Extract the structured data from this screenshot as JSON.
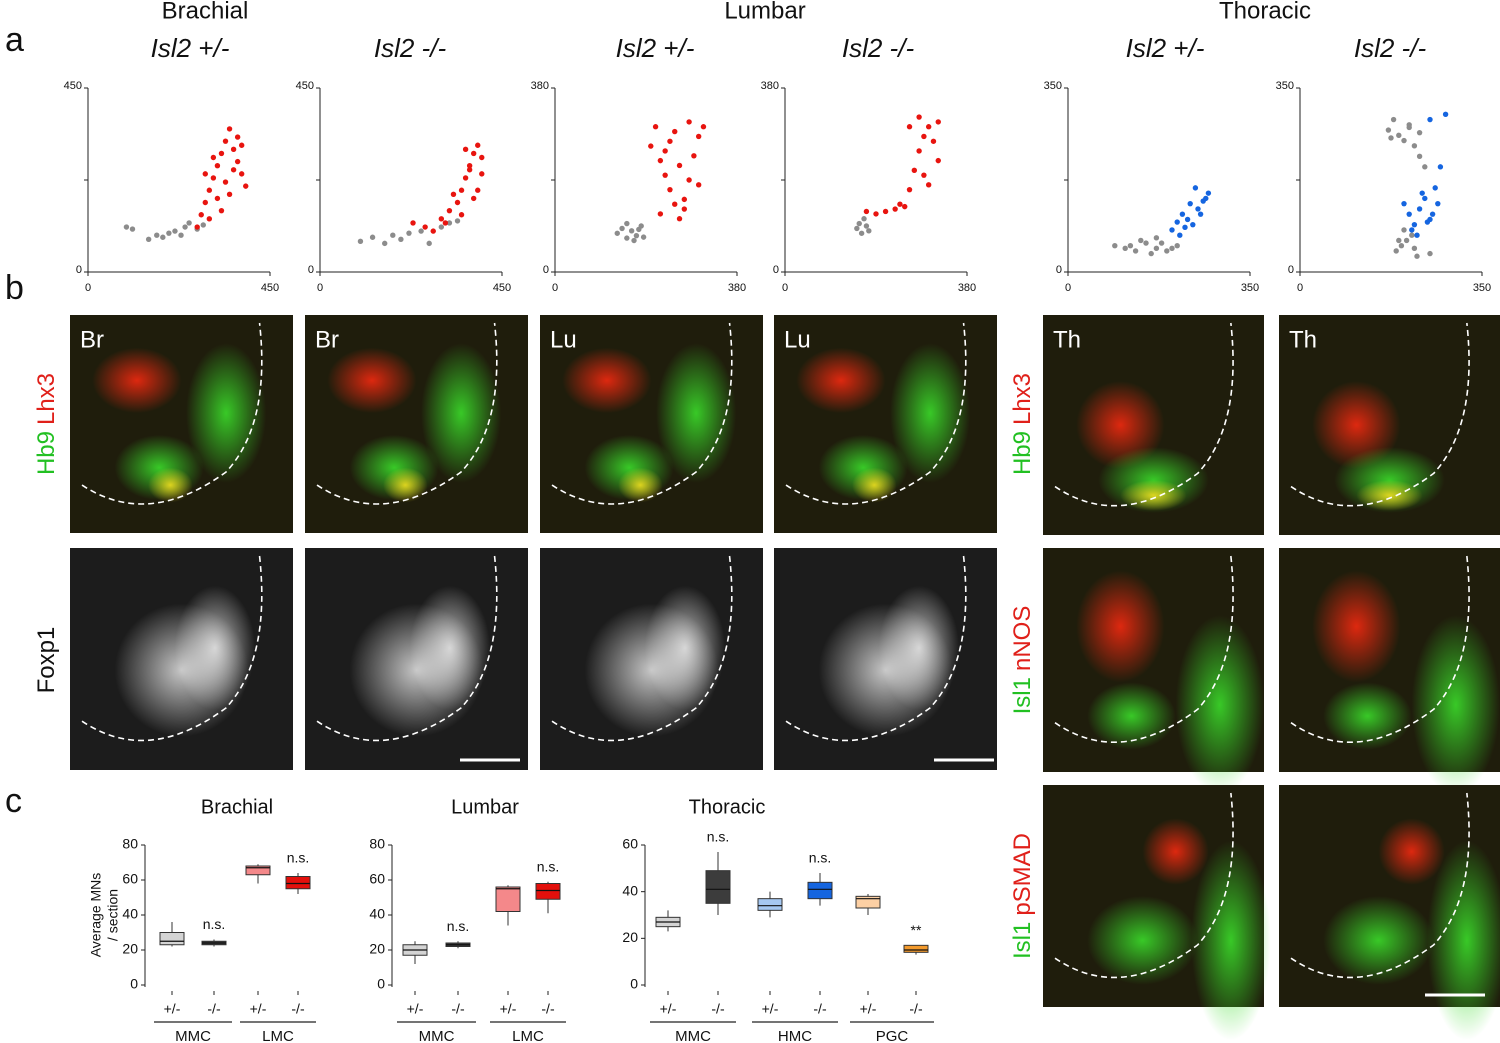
{
  "labels": {
    "panels": [
      "a",
      "b",
      "c"
    ],
    "regions": [
      "Brachial",
      "Lumbar",
      "Thoracic"
    ],
    "genotypes": [
      "Isl2 +/-",
      "Isl2 -/-",
      "Isl2 +/-",
      "Isl2 -/-",
      "Isl2 +/-",
      "Isl2 -/-"
    ],
    "image_tags": [
      "Br",
      "Br",
      "Lu",
      "Lu"
    ],
    "thoracic_tags": [
      "Th",
      "Th"
    ],
    "row_labels": [
      [
        {
          "text": "Hb9",
          "color": "#22c022"
        },
        {
          "text": "Lhx3",
          "color": "#e0201a"
        }
      ],
      [
        {
          "text": "Foxp1",
          "color": "#111111"
        }
      ]
    ],
    "thoracic_row_labels": [
      [
        {
          "text": "Hb9",
          "color": "#22c022"
        },
        {
          "text": "Lhx3",
          "color": "#e0201a"
        }
      ],
      [
        {
          "text": "Isl1",
          "color": "#22c022"
        },
        {
          "text": "nNOS",
          "color": "#e0201a"
        }
      ],
      [
        {
          "text": "Isl1",
          "color": "#22c022"
        },
        {
          "text": "pSMAD",
          "color": "#e0201a"
        }
      ]
    ]
  },
  "chart_data": [
    {
      "type": "scatter",
      "xlim": [
        0,
        450
      ],
      "ylim": [
        0,
        450
      ],
      "xticks": [
        0,
        450
      ],
      "yticks": [
        0,
        450
      ],
      "yminor": [
        225
      ],
      "series": [
        {
          "color": "#8c8c8c",
          "x": [
            95,
            110,
            150,
            170,
            185,
            200,
            215,
            230,
            240,
            250,
            270,
            285
          ],
          "values": [
            110,
            105,
            80,
            90,
            85,
            95,
            100,
            90,
            110,
            120,
            105,
            115
          ]
        },
        {
          "color": "#e8140f",
          "x": [
            270,
            280,
            290,
            300,
            310,
            320,
            330,
            340,
            350,
            360,
            370,
            380,
            390,
            300,
            320,
            340,
            360,
            380,
            290,
            310,
            330,
            350,
            370
          ],
          "values": [
            110,
            140,
            170,
            200,
            230,
            260,
            290,
            320,
            350,
            300,
            270,
            240,
            210,
            130,
            180,
            220,
            250,
            310,
            240,
            280,
            150,
            190,
            330
          ]
        }
      ]
    },
    {
      "type": "scatter",
      "xlim": [
        0,
        450
      ],
      "ylim": [
        0,
        450
      ],
      "xticks": [
        0,
        450
      ],
      "yticks": [
        0,
        450
      ],
      "yminor": [
        225
      ],
      "series": [
        {
          "color": "#8c8c8c",
          "x": [
            100,
            130,
            160,
            180,
            200,
            220,
            250,
            270,
            300,
            320,
            340
          ],
          "values": [
            75,
            85,
            70,
            90,
            80,
            95,
            100,
            70,
            110,
            120,
            125
          ]
        },
        {
          "color": "#e8140f",
          "x": [
            230,
            260,
            280,
            300,
            320,
            340,
            350,
            360,
            370,
            380,
            390,
            400,
            330,
            350,
            370,
            390,
            310,
            360,
            380,
            400
          ],
          "values": [
            120,
            110,
            100,
            130,
            150,
            170,
            200,
            230,
            260,
            290,
            310,
            280,
            190,
            140,
            250,
            200,
            120,
            300,
            180,
            240
          ]
        }
      ]
    },
    {
      "type": "scatter",
      "xlim": [
        0,
        380
      ],
      "ylim": [
        0,
        380
      ],
      "xticks": [
        0,
        380
      ],
      "yticks": [
        0,
        380
      ],
      "yminor": [
        190
      ],
      "series": [
        {
          "color": "#8c8c8c",
          "x": [
            130,
            140,
            150,
            160,
            170,
            180,
            150,
            165,
            175,
            185
          ],
          "values": [
            80,
            90,
            70,
            85,
            75,
            95,
            100,
            65,
            88,
            72
          ]
        },
        {
          "color": "#e8140f",
          "x": [
            200,
            210,
            220,
            230,
            240,
            250,
            260,
            270,
            280,
            290,
            300,
            310,
            220,
            240,
            260,
            280,
            300,
            230,
            250,
            270
          ],
          "values": [
            260,
            300,
            230,
            200,
            170,
            140,
            110,
            150,
            190,
            240,
            280,
            300,
            120,
            270,
            220,
            310,
            180,
            250,
            290,
            130
          ]
        }
      ]
    },
    {
      "type": "scatter",
      "xlim": [
        0,
        380
      ],
      "ylim": [
        0,
        380
      ],
      "xticks": [
        0,
        380
      ],
      "yticks": [
        0,
        380
      ],
      "yminor": [
        190
      ],
      "series": [
        {
          "color": "#8c8c8c",
          "x": [
            150,
            155,
            160,
            165,
            170,
            175
          ],
          "values": [
            90,
            100,
            80,
            110,
            95,
            85
          ]
        },
        {
          "color": "#e8140f",
          "x": [
            170,
            190,
            210,
            230,
            250,
            260,
            270,
            280,
            290,
            300,
            310,
            320,
            260,
            280,
            300,
            320,
            240,
            290
          ],
          "values": [
            125,
            120,
            125,
            130,
            135,
            170,
            210,
            250,
            280,
            300,
            270,
            230,
            300,
            320,
            180,
            310,
            140,
            200
          ]
        }
      ]
    },
    {
      "type": "scatter",
      "xlim": [
        0,
        350
      ],
      "ylim": [
        0,
        350
      ],
      "xticks": [
        0,
        350
      ],
      "yticks": [
        0,
        350
      ],
      "yminor": [
        175
      ],
      "series": [
        {
          "color": "#8c8c8c",
          "x": [
            90,
            110,
            130,
            150,
            170,
            190,
            210,
            140,
            160,
            180,
            200,
            120,
            170
          ],
          "values": [
            50,
            45,
            40,
            55,
            45,
            40,
            50,
            60,
            35,
            55,
            45,
            50,
            65
          ]
        },
        {
          "color": "#1565e0",
          "x": [
            200,
            210,
            220,
            230,
            240,
            250,
            260,
            270,
            215,
            235,
            255,
            265,
            245,
            225
          ],
          "values": [
            80,
            95,
            110,
            100,
            90,
            120,
            135,
            150,
            70,
            130,
            110,
            140,
            160,
            85
          ]
        }
      ]
    },
    {
      "type": "scatter",
      "xlim": [
        0,
        350
      ],
      "ylim": [
        0,
        350
      ],
      "xticks": [
        0,
        350
      ],
      "yticks": [
        0,
        350
      ],
      "yminor": [
        175
      ],
      "series": [
        {
          "color": "#8c8c8c",
          "x": [
            170,
            180,
            190,
            200,
            210,
            220,
            230,
            185,
            205,
            225,
            195,
            215,
            240,
            200,
            220,
            175,
            210,
            230,
            190,
            250
          ],
          "values": [
            270,
            290,
            260,
            250,
            280,
            240,
            220,
            40,
            60,
            30,
            50,
            70,
            200,
            80,
            45,
            255,
            275,
            265,
            60,
            35
          ]
        },
        {
          "color": "#1565e0",
          "x": [
            200,
            210,
            220,
            230,
            240,
            250,
            260,
            270,
            215,
            235,
            255,
            265,
            245,
            225,
            250,
            280
          ],
          "values": [
            130,
            110,
            90,
            120,
            140,
            100,
            160,
            200,
            80,
            150,
            110,
            130,
            95,
            70,
            290,
            300
          ]
        }
      ]
    },
    {
      "type": "box",
      "title": "Brachial",
      "ylabel": [
        "Average MNs",
        "/ section"
      ],
      "ylim": [
        0,
        80
      ],
      "yticks": [
        0,
        20,
        40,
        60,
        80
      ],
      "categories": [
        "+/-",
        "-/-",
        "+/-",
        "-/-"
      ],
      "groups": [
        "MMC",
        "LMC"
      ],
      "colors": [
        "#d4d4d4",
        "#3c3c3c",
        "#f4888a",
        "#e3100c"
      ],
      "min": [
        22,
        22,
        58,
        52
      ],
      "q1": [
        23,
        23,
        63,
        55
      ],
      "median": [
        25,
        24,
        67,
        58
      ],
      "q3": [
        30,
        25,
        68,
        62
      ],
      "max": [
        36,
        26,
        69,
        64
      ],
      "annotations": [
        null,
        "n.s.",
        null,
        "n.s."
      ]
    },
    {
      "type": "box",
      "title": "Lumbar",
      "ylim": [
        0,
        80
      ],
      "yticks": [
        0,
        20,
        40,
        60,
        80
      ],
      "categories": [
        "+/-",
        "-/-",
        "+/-",
        "-/-"
      ],
      "groups": [
        "MMC",
        "LMC"
      ],
      "colors": [
        "#d4d4d4",
        "#3c3c3c",
        "#f4888a",
        "#e3100c"
      ],
      "min": [
        12,
        21,
        34,
        41
      ],
      "q1": [
        17,
        22,
        42,
        49
      ],
      "median": [
        20,
        23,
        55,
        54
      ],
      "q3": [
        23,
        24,
        56,
        58
      ],
      "max": [
        25,
        25,
        57,
        59
      ],
      "annotations": [
        null,
        "n.s.",
        null,
        "n.s."
      ]
    },
    {
      "type": "box",
      "title": "Thoracic",
      "ylim": [
        0,
        60
      ],
      "yticks": [
        0,
        20,
        40,
        60
      ],
      "categories": [
        "+/-",
        "-/-",
        "+/-",
        "-/-",
        "+/-",
        "-/-"
      ],
      "groups": [
        "MMC",
        "HMC",
        "PGC"
      ],
      "colors": [
        "#d4d4d4",
        "#3c3c3c",
        "#a6c8f2",
        "#1565e0",
        "#fdd0a4",
        "#f39a2c"
      ],
      "min": [
        23,
        30,
        29,
        34,
        30,
        13
      ],
      "q1": [
        25,
        35,
        32,
        37,
        33,
        14
      ],
      "median": [
        27,
        41,
        34,
        41,
        37,
        15
      ],
      "q3": [
        29,
        49,
        37,
        44,
        38,
        17
      ],
      "max": [
        32,
        57,
        40,
        48,
        39,
        17
      ],
      "annotations": [
        null,
        "n.s.",
        null,
        "n.s.",
        null,
        "**"
      ]
    }
  ]
}
